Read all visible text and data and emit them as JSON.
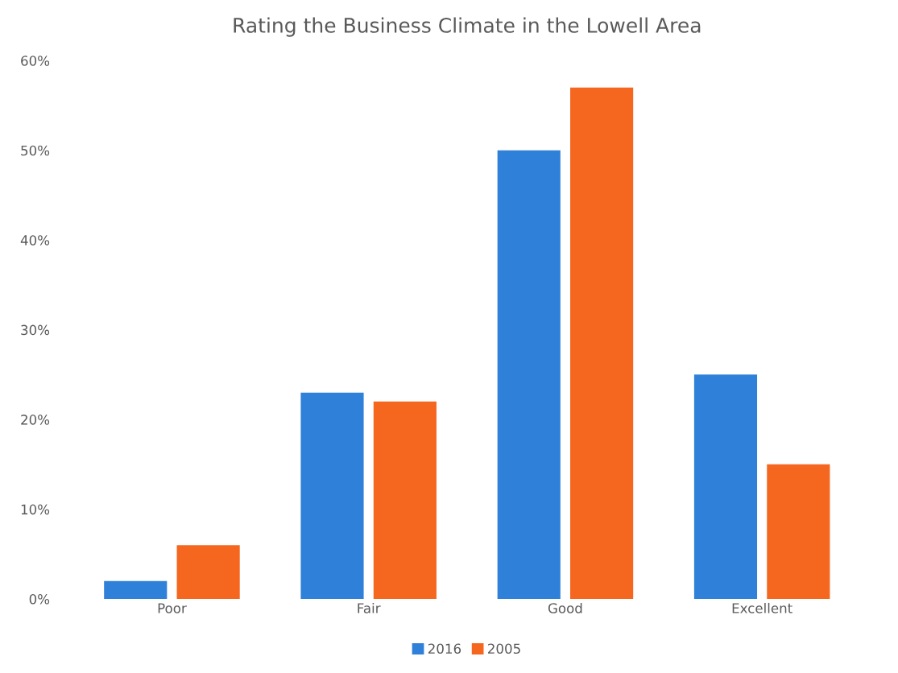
{
  "chart_data": {
    "type": "bar",
    "title": "Rating the Business Climate in the Lowell Area",
    "categories": [
      "Poor",
      "Fair",
      "Good",
      "Excellent"
    ],
    "series": [
      {
        "name": "2016",
        "color": "#2f80d8",
        "values": [
          2,
          23,
          50,
          25
        ]
      },
      {
        "name": "2005",
        "color": "#f5661f",
        "values": [
          6,
          22,
          57,
          15
        ]
      }
    ],
    "ylim": [
      0,
      60
    ],
    "yticks": [
      {
        "value": 0,
        "label": "0%"
      },
      {
        "value": 10,
        "label": "10%"
      },
      {
        "value": 20,
        "label": "20%"
      },
      {
        "value": 30,
        "label": "30%"
      },
      {
        "value": 40,
        "label": "40%"
      },
      {
        "value": 50,
        "label": "50%"
      },
      {
        "value": 60,
        "label": "60%"
      }
    ],
    "grid": false,
    "legend": "bottom"
  }
}
